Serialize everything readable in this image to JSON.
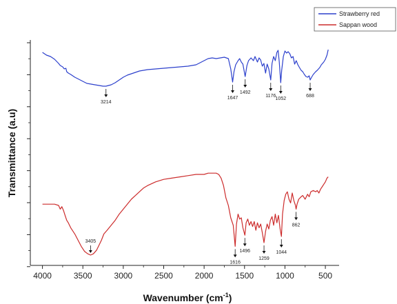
{
  "chart_data": {
    "type": "line",
    "xlabel": "Wavenumber (cm",
    "xlabel_sup": "-1",
    "xlabel_close": ")",
    "ylabel": "Transmittance (a.u)",
    "xlim": [
      4150,
      330
    ],
    "x_reversed": true,
    "x_ticks": [
      4000,
      3500,
      3000,
      2500,
      2000,
      1500,
      1000,
      500
    ],
    "ylim": [
      0,
      100
    ],
    "grid": false,
    "legend_position": "top-right",
    "series": [
      {
        "name": "Strawberry red",
        "color": "#2b3fcc",
        "points": [
          [
            4000,
            92
          ],
          [
            3950,
            88
          ],
          [
            3900,
            86
          ],
          [
            3850,
            82
          ],
          [
            3800,
            76
          ],
          [
            3780,
            73
          ],
          [
            3750,
            71
          ],
          [
            3730,
            68
          ],
          [
            3710,
            69
          ],
          [
            3700,
            64
          ],
          [
            3680,
            62
          ],
          [
            3650,
            60
          ],
          [
            3600,
            56
          ],
          [
            3550,
            53
          ],
          [
            3500,
            50
          ],
          [
            3450,
            47
          ],
          [
            3400,
            46
          ],
          [
            3350,
            45
          ],
          [
            3300,
            44
          ],
          [
            3250,
            43
          ],
          [
            3214,
            43
          ],
          [
            3150,
            45
          ],
          [
            3100,
            48
          ],
          [
            3050,
            52
          ],
          [
            3000,
            56
          ],
          [
            2950,
            59
          ],
          [
            2900,
            61
          ],
          [
            2850,
            63
          ],
          [
            2800,
            65
          ],
          [
            2700,
            67
          ],
          [
            2600,
            68
          ],
          [
            2500,
            69
          ],
          [
            2400,
            70
          ],
          [
            2300,
            71
          ],
          [
            2200,
            72
          ],
          [
            2100,
            74
          ],
          [
            2050,
            77
          ],
          [
            2000,
            80
          ],
          [
            1950,
            83
          ],
          [
            1900,
            84
          ],
          [
            1850,
            83
          ],
          [
            1800,
            84
          ],
          [
            1750,
            85
          ],
          [
            1700,
            83
          ],
          [
            1670,
            68
          ],
          [
            1647,
            49
          ],
          [
            1630,
            64
          ],
          [
            1610,
            74
          ],
          [
            1580,
            80
          ],
          [
            1560,
            83
          ],
          [
            1540,
            78
          ],
          [
            1520,
            75
          ],
          [
            1492,
            57
          ],
          [
            1470,
            73
          ],
          [
            1450,
            80
          ],
          [
            1420,
            84
          ],
          [
            1390,
            80
          ],
          [
            1370,
            86
          ],
          [
            1340,
            78
          ],
          [
            1320,
            84
          ],
          [
            1300,
            81
          ],
          [
            1280,
            72
          ],
          [
            1260,
            76
          ],
          [
            1240,
            62
          ],
          [
            1220,
            75
          ],
          [
            1200,
            68
          ],
          [
            1176,
            52
          ],
          [
            1160,
            76
          ],
          [
            1140,
            86
          ],
          [
            1120,
            80
          ],
          [
            1100,
            92
          ],
          [
            1085,
            95
          ],
          [
            1070,
            78
          ],
          [
            1052,
            48
          ],
          [
            1040,
            66
          ],
          [
            1020,
            86
          ],
          [
            1000,
            94
          ],
          [
            980,
            91
          ],
          [
            960,
            93
          ],
          [
            940,
            90
          ],
          [
            920,
            84
          ],
          [
            900,
            86
          ],
          [
            880,
            75
          ],
          [
            860,
            80
          ],
          [
            840,
            74
          ],
          [
            820,
            70
          ],
          [
            800,
            66
          ],
          [
            780,
            64
          ],
          [
            760,
            60
          ],
          [
            740,
            57
          ],
          [
            720,
            56
          ],
          [
            700,
            58
          ],
          [
            688,
            52
          ],
          [
            670,
            56
          ],
          [
            650,
            60
          ],
          [
            620,
            64
          ],
          [
            600,
            66
          ],
          [
            570,
            70
          ],
          [
            550,
            74
          ],
          [
            520,
            78
          ],
          [
            500,
            82
          ],
          [
            480,
            88
          ],
          [
            465,
            96
          ]
        ]
      },
      {
        "name": "Sappan wood",
        "color": "#cc2b2b",
        "points": [
          [
            4000,
            41
          ],
          [
            3950,
            41
          ],
          [
            3900,
            41
          ],
          [
            3850,
            41
          ],
          [
            3800,
            40
          ],
          [
            3780,
            37
          ],
          [
            3760,
            39
          ],
          [
            3740,
            36
          ],
          [
            3720,
            32
          ],
          [
            3700,
            28
          ],
          [
            3680,
            26
          ],
          [
            3650,
            22
          ],
          [
            3600,
            17
          ],
          [
            3560,
            12
          ],
          [
            3520,
            7
          ],
          [
            3480,
            3
          ],
          [
            3440,
            1
          ],
          [
            3405,
            0
          ],
          [
            3370,
            1
          ],
          [
            3330,
            4
          ],
          [
            3300,
            8
          ],
          [
            3270,
            12
          ],
          [
            3240,
            17
          ],
          [
            3200,
            20
          ],
          [
            3150,
            24
          ],
          [
            3100,
            28
          ],
          [
            3050,
            33
          ],
          [
            3000,
            37
          ],
          [
            2950,
            41
          ],
          [
            2900,
            45
          ],
          [
            2850,
            48
          ],
          [
            2800,
            51
          ],
          [
            2750,
            54
          ],
          [
            2700,
            56
          ],
          [
            2600,
            59
          ],
          [
            2500,
            61
          ],
          [
            2400,
            62
          ],
          [
            2300,
            63
          ],
          [
            2200,
            64
          ],
          [
            2100,
            65
          ],
          [
            2000,
            65
          ],
          [
            1950,
            66
          ],
          [
            1900,
            66
          ],
          [
            1850,
            66
          ],
          [
            1820,
            65
          ],
          [
            1790,
            62
          ],
          [
            1760,
            56
          ],
          [
            1730,
            46
          ],
          [
            1700,
            40
          ],
          [
            1670,
            30
          ],
          [
            1640,
            24
          ],
          [
            1616,
            7
          ],
          [
            1600,
            25
          ],
          [
            1580,
            33
          ],
          [
            1560,
            29
          ],
          [
            1540,
            30
          ],
          [
            1520,
            22
          ],
          [
            1496,
            16
          ],
          [
            1480,
            26
          ],
          [
            1460,
            29
          ],
          [
            1440,
            24
          ],
          [
            1420,
            27
          ],
          [
            1400,
            23
          ],
          [
            1380,
            27
          ],
          [
            1360,
            20
          ],
          [
            1340,
            26
          ],
          [
            1320,
            22
          ],
          [
            1300,
            25
          ],
          [
            1280,
            18
          ],
          [
            1259,
            10
          ],
          [
            1240,
            19
          ],
          [
            1220,
            25
          ],
          [
            1200,
            21
          ],
          [
            1180,
            28
          ],
          [
            1160,
            31
          ],
          [
            1140,
            24
          ],
          [
            1120,
            33
          ],
          [
            1100,
            26
          ],
          [
            1080,
            32
          ],
          [
            1060,
            21
          ],
          [
            1044,
            15
          ],
          [
            1030,
            33
          ],
          [
            1010,
            44
          ],
          [
            990,
            49
          ],
          [
            970,
            51
          ],
          [
            950,
            45
          ],
          [
            930,
            42
          ],
          [
            910,
            50
          ],
          [
            890,
            44
          ],
          [
            870,
            40
          ],
          [
            862,
            37
          ],
          [
            850,
            41
          ],
          [
            830,
            45
          ],
          [
            800,
            47
          ],
          [
            780,
            48
          ],
          [
            750,
            45
          ],
          [
            720,
            49
          ],
          [
            700,
            47
          ],
          [
            680,
            51
          ],
          [
            650,
            52
          ],
          [
            620,
            51
          ],
          [
            600,
            52
          ],
          [
            580,
            50
          ],
          [
            560,
            53
          ],
          [
            540,
            55
          ],
          [
            520,
            57
          ],
          [
            500,
            59
          ],
          [
            480,
            62
          ],
          [
            465,
            63
          ]
        ]
      }
    ],
    "annotations": [
      {
        "series": 0,
        "x": 3214,
        "label": "3214",
        "position": "below"
      },
      {
        "series": 0,
        "x": 1647,
        "label": "1647",
        "position": "below"
      },
      {
        "series": 0,
        "x": 1492,
        "label": "1492",
        "position": "below"
      },
      {
        "series": 0,
        "x": 1176,
        "label": "1176",
        "position": "below"
      },
      {
        "series": 0,
        "x": 1052,
        "label": "1052",
        "position": "below"
      },
      {
        "series": 0,
        "x": 688,
        "label": "688",
        "position": "below"
      },
      {
        "series": 1,
        "x": 3405,
        "label": "3405",
        "position": "above"
      },
      {
        "series": 1,
        "x": 1616,
        "label": "1616",
        "position": "below"
      },
      {
        "series": 1,
        "x": 1496,
        "label": "1496",
        "position": "below"
      },
      {
        "series": 1,
        "x": 1259,
        "label": "1259",
        "position": "below"
      },
      {
        "series": 1,
        "x": 1044,
        "label": "1044",
        "position": "below"
      },
      {
        "series": 1,
        "x": 862,
        "label": "862",
        "position": "below"
      }
    ]
  }
}
